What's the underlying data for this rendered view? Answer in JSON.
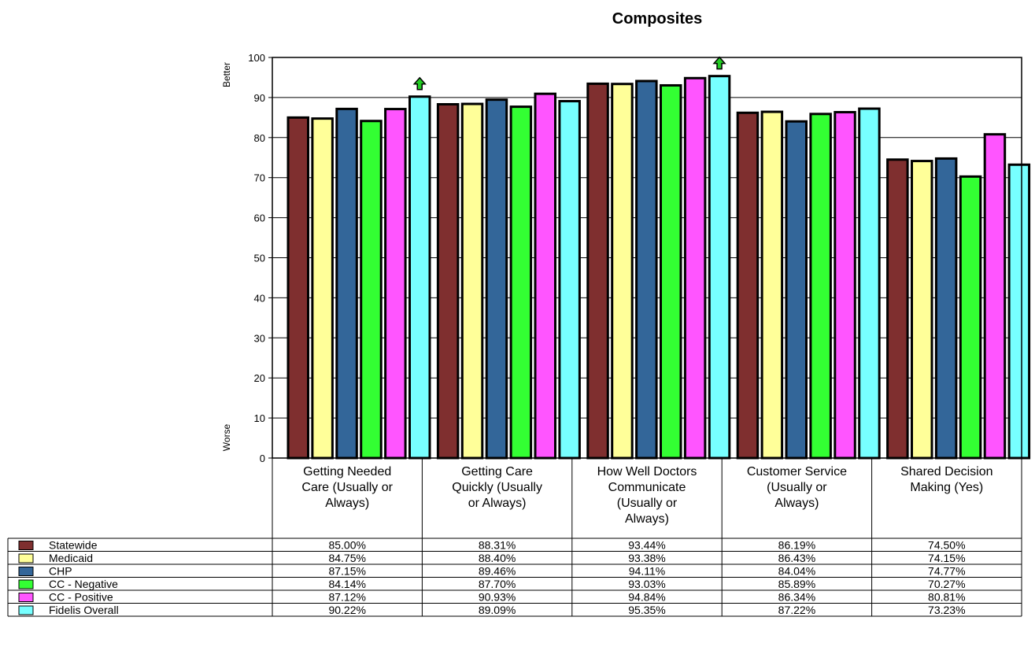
{
  "chart_data": {
    "type": "bar",
    "title": "Composites",
    "ylabel_top": "Better",
    "ylabel_bottom": "Worse",
    "ylim": [
      0,
      100
    ],
    "yticks": [
      0,
      10,
      20,
      30,
      40,
      50,
      60,
      70,
      80,
      90,
      100
    ],
    "grid": true,
    "categories": [
      [
        "Getting Needed",
        "Care (Usually or",
        "Always)"
      ],
      [
        "Getting Care",
        "Quickly (Usually",
        "or Always)"
      ],
      [
        "How Well Doctors",
        "Communicate",
        "(Usually or",
        "Always)"
      ],
      [
        "Customer Service",
        "(Usually or",
        "Always)"
      ],
      [
        "Shared Decision",
        "Making (Yes)"
      ]
    ],
    "series": [
      {
        "name": "Statewide",
        "color": "#7f2f2f",
        "values": [
          85.0,
          88.31,
          93.44,
          86.19,
          74.5
        ],
        "labels": [
          "85.00%",
          "88.31%",
          "93.44%",
          "86.19%",
          "74.50%"
        ]
      },
      {
        "name": "Medicaid",
        "color": "#ffff99",
        "values": [
          84.75,
          88.4,
          93.38,
          86.43,
          74.15
        ],
        "labels": [
          "84.75%",
          "88.40%",
          "93.38%",
          "86.43%",
          "74.15%"
        ]
      },
      {
        "name": "CHP",
        "color": "#336699",
        "values": [
          87.15,
          89.46,
          94.11,
          84.04,
          74.77
        ],
        "labels": [
          "87.15%",
          "89.46%",
          "94.11%",
          "84.04%",
          "74.77%"
        ]
      },
      {
        "name": "CC - Negative",
        "color": "#33ff33",
        "values": [
          84.14,
          87.7,
          93.03,
          85.89,
          70.27
        ],
        "labels": [
          "84.14%",
          "87.70%",
          "93.03%",
          "85.89%",
          "70.27%"
        ]
      },
      {
        "name": "CC - Positive",
        "color": "#ff55ff",
        "values": [
          87.12,
          90.93,
          94.84,
          86.34,
          80.81
        ],
        "labels": [
          "87.12%",
          "90.93%",
          "94.84%",
          "86.34%",
          "80.81%"
        ]
      },
      {
        "name": "Fidelis Overall",
        "color": "#77ffff",
        "values": [
          90.22,
          89.09,
          95.35,
          87.22,
          73.23
        ],
        "labels": [
          "90.22%",
          "89.09%",
          "95.35%",
          "87.22%",
          "73.23%"
        ]
      }
    ],
    "annotations": [
      {
        "type": "up-arrow-icon",
        "category_index": 0,
        "series_index": 5,
        "color": "#22cc22"
      },
      {
        "type": "up-arrow-icon",
        "category_index": 2,
        "series_index": 5,
        "color": "#22cc22"
      }
    ]
  }
}
